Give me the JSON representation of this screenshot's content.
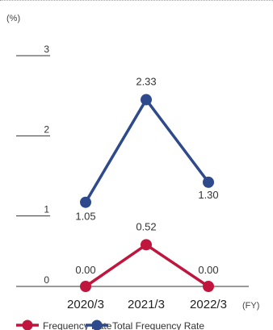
{
  "chart_data": {
    "type": "line",
    "unit_label": "(%)",
    "x_unit_label": "(FY)",
    "categories": [
      "2020/3",
      "2021/3",
      "2022/3"
    ],
    "ylim": [
      0,
      3
    ],
    "yticks": [
      "0",
      "1",
      "2",
      "3"
    ],
    "series": [
      {
        "name": "Frequency Rate",
        "color": "#c0153c",
        "values": [
          0.0,
          0.52,
          0.0
        ],
        "labels": [
          "0.00",
          "0.52",
          "0.00"
        ]
      },
      {
        "name": "Total Frequency Rate",
        "color": "#2e4a8c",
        "values": [
          1.05,
          2.33,
          1.3
        ],
        "labels": [
          "1.05",
          "2.33",
          "1.30"
        ]
      }
    ],
    "legend": {
      "position": "bottom",
      "items": [
        "Frequency Rate",
        "Total Frequency Rate"
      ]
    },
    "grid": false
  }
}
